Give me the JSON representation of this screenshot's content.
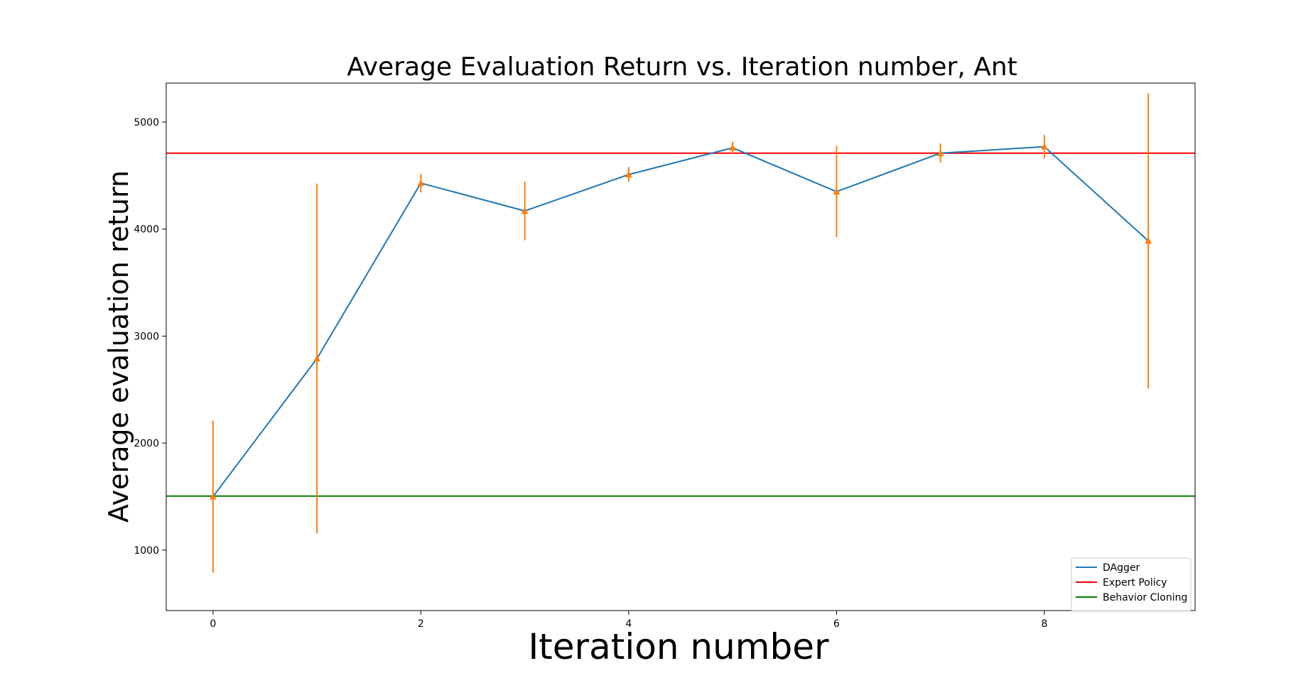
{
  "chart_data": {
    "type": "line",
    "title": "Average Evaluation Return vs. Iteration number, Ant",
    "xlabel": "Iteration number",
    "ylabel": "Average evaluation return",
    "xlim": [
      -0.45,
      9.45
    ],
    "ylim": [
      435,
      5365
    ],
    "xticks": [
      0,
      2,
      4,
      6,
      8
    ],
    "yticks": [
      1000,
      2000,
      3000,
      4000,
      5000
    ],
    "grid": false,
    "legend_position": "lower right",
    "series": [
      {
        "name": "DAgger",
        "color": "#1f77b4",
        "x": [
          0,
          1,
          2,
          3,
          4,
          5,
          6,
          7,
          8,
          9
        ],
        "y": [
          1500,
          2790,
          4430,
          4170,
          4510,
          4760,
          4350,
          4710,
          4770,
          3890
        ],
        "error": [
          710,
          1635,
          85,
          275,
          70,
          55,
          425,
          90,
          110,
          1380
        ],
        "error_color": "#ff7f0e",
        "marker": "triangle-up"
      }
    ],
    "reference_lines": [
      {
        "name": "Expert Policy",
        "color": "#ff0000",
        "y": 4710
      },
      {
        "name": "Behavior Cloning",
        "color": "#008000",
        "y": 1505
      }
    ]
  }
}
